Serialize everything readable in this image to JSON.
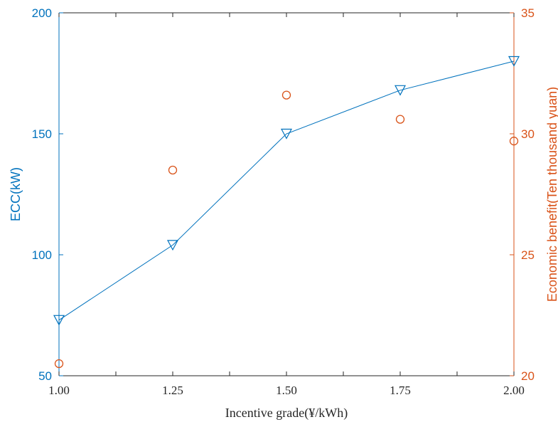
{
  "chart_data": {
    "type": "line",
    "xlabel": "Incentive grade(¥/kWh)",
    "x": [
      1.0,
      1.25,
      1.5,
      1.75,
      2.0
    ],
    "x_ticks": [
      "1.00",
      "1.25",
      "1.50",
      "1.75",
      "2.00"
    ],
    "xlim": [
      1.0,
      2.0
    ],
    "y_left": {
      "label": "ECC(kW)",
      "ylim": [
        50,
        200
      ],
      "ticks": [
        "50",
        "100",
        "150",
        "200"
      ],
      "color": "#0072bd"
    },
    "y_right": {
      "label": "Economic benefit(Ten thousand yuan)",
      "ylim": [
        20,
        35
      ],
      "ticks": [
        "20",
        "25",
        "30",
        "35"
      ],
      "color": "#d95319"
    },
    "series": [
      {
        "axis": "left",
        "style": "line-triangle-down",
        "color": "#0072bd",
        "values": [
          73,
          104,
          150,
          168,
          180
        ]
      },
      {
        "axis": "right",
        "style": "circle-markers",
        "color": "#d95319",
        "values": [
          20.5,
          28.5,
          31.6,
          30.6,
          29.7
        ]
      }
    ],
    "grid": false,
    "legend": "none"
  }
}
